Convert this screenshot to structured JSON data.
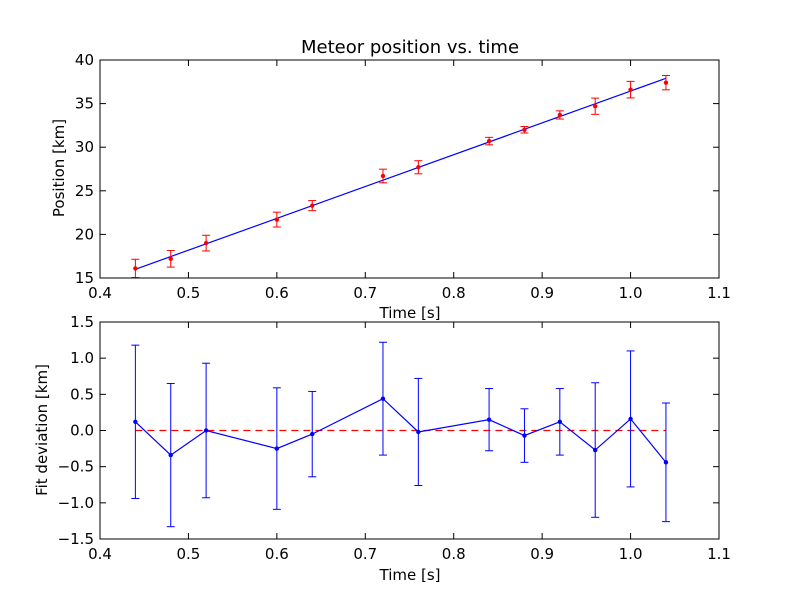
{
  "chart_data": [
    {
      "type": "line",
      "title": "Meteor position vs. time",
      "xlabel": "Time [s]",
      "ylabel": "Position [km]",
      "xlim": [
        0.4,
        1.1
      ],
      "ylim": [
        15,
        40
      ],
      "xticks": [
        "0.4",
        "0.5",
        "0.6",
        "0.7",
        "0.8",
        "0.9",
        "1.0",
        "1.1"
      ],
      "yticks": [
        "15",
        "20",
        "25",
        "30",
        "35",
        "40"
      ],
      "grid": false,
      "series": [
        {
          "kind": "errorbar",
          "color": "#ff0000",
          "x": [
            0.44,
            0.48,
            0.52,
            0.6,
            0.64,
            0.72,
            0.76,
            0.84,
            0.88,
            0.92,
            0.96,
            1.0,
            1.04
          ],
          "y": [
            16.1,
            17.2,
            19.0,
            21.7,
            23.3,
            26.7,
            27.7,
            30.7,
            32.0,
            33.7,
            34.7,
            36.6,
            37.4
          ],
          "yerr": [
            1.05,
            0.95,
            0.9,
            0.85,
            0.58,
            0.78,
            0.75,
            0.43,
            0.37,
            0.47,
            0.93,
            0.95,
            0.82
          ]
        },
        {
          "kind": "fit_line",
          "color": "#0000ff",
          "x": [
            0.44,
            1.04
          ],
          "y": [
            16.0,
            37.9
          ]
        }
      ]
    },
    {
      "type": "line",
      "title": "",
      "xlabel": "Time [s]",
      "ylabel": "Fit deviation [km]",
      "xlim": [
        0.4,
        1.1
      ],
      "ylim": [
        -1.5,
        1.5
      ],
      "xticks": [
        "0.4",
        "0.5",
        "0.6",
        "0.7",
        "0.8",
        "0.9",
        "1.0",
        "1.1"
      ],
      "yticks": [
        "-1.5",
        "-1.0",
        "-0.5",
        "0.0",
        "0.5",
        "1.0",
        "1.5"
      ],
      "grid": false,
      "series": [
        {
          "kind": "errorbar_line",
          "color": "#0000ff",
          "x": [
            0.44,
            0.48,
            0.52,
            0.6,
            0.64,
            0.72,
            0.76,
            0.84,
            0.88,
            0.92,
            0.96,
            1.0,
            1.04
          ],
          "y": [
            0.12,
            -0.34,
            0.0,
            -0.25,
            -0.05,
            0.44,
            -0.02,
            0.15,
            -0.07,
            0.12,
            -0.27,
            0.16,
            -0.44
          ],
          "yerr": [
            1.06,
            0.99,
            0.93,
            0.84,
            0.59,
            0.78,
            0.74,
            0.43,
            0.37,
            0.46,
            0.93,
            0.94,
            0.82
          ]
        },
        {
          "kind": "reference_line",
          "color": "#ff0000",
          "style": "dashed",
          "x": [
            0.44,
            1.04
          ],
          "y": [
            0.0,
            0.0
          ]
        }
      ]
    }
  ]
}
